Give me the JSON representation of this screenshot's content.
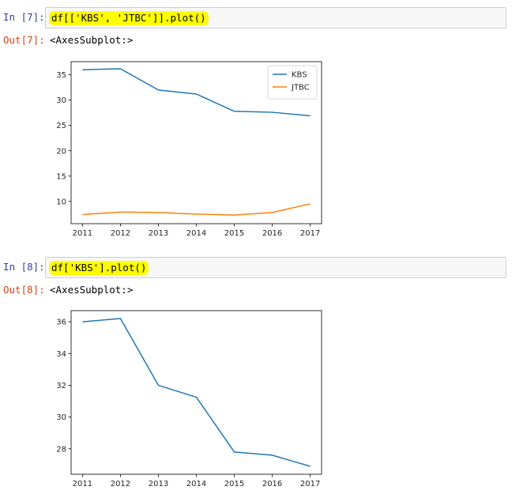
{
  "cells": [
    {
      "in_prompt": "In [7]:",
      "code": "df[['KBS', 'JTBC']].plot()",
      "out_prompt": "Out[7]:",
      "out_text": "<AxesSubplot:>"
    },
    {
      "in_prompt": "In [8]:",
      "code": "df['KBS'].plot()",
      "out_prompt": "Out[8]:",
      "out_text": "<AxesSubplot:>"
    }
  ],
  "colors": {
    "series1": "#1f77b4",
    "series2": "#ff7f0e",
    "highlight": "#ffff00"
  },
  "chart_data": [
    {
      "type": "line",
      "x": [
        2011,
        2012,
        2013,
        2014,
        2015,
        2016,
        2017
      ],
      "series": [
        {
          "name": "KBS",
          "values": [
            36.0,
            36.2,
            32.0,
            31.2,
            27.8,
            27.6,
            26.9
          ]
        },
        {
          "name": "JTBC",
          "values": [
            7.4,
            7.9,
            7.8,
            7.5,
            7.3,
            7.8,
            9.5
          ]
        }
      ],
      "xticks": [
        "2011",
        "2012",
        "2013",
        "2014",
        "2015",
        "2016",
        "2017"
      ],
      "yticks": [
        10,
        15,
        20,
        25,
        30,
        35
      ],
      "ylim": [
        5.6,
        37.6
      ],
      "xlim": [
        2010.7,
        2017.3
      ],
      "legend": "top-right",
      "grid": false
    },
    {
      "type": "line",
      "x": [
        2011,
        2012,
        2013,
        2014,
        2015,
        2016,
        2017
      ],
      "series": [
        {
          "name": "KBS",
          "values": [
            36.0,
            36.2,
            32.0,
            31.25,
            27.8,
            27.6,
            26.9
          ]
        }
      ],
      "xticks": [
        "2011",
        "2012",
        "2013",
        "2014",
        "2015",
        "2016",
        "2017"
      ],
      "yticks": [
        28,
        30,
        32,
        34,
        36
      ],
      "ylim": [
        26.4,
        36.7
      ],
      "xlim": [
        2010.7,
        2017.3
      ],
      "legend": "none",
      "grid": false
    }
  ]
}
